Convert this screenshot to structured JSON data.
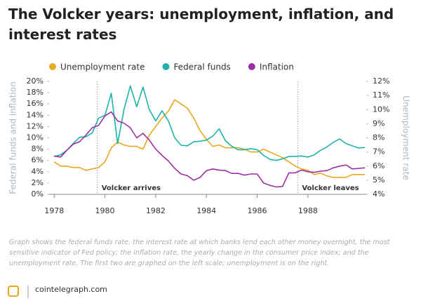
{
  "chart_data": {
    "type": "line",
    "title": "The Volcker years: unemployment, inflation, and interest rates",
    "ylabel": "Federal funds and inflation",
    "y2label": "Unemployment rate",
    "x": [
      1978,
      1978.25,
      1978.5,
      1978.75,
      1979,
      1979.25,
      1979.5,
      1979.75,
      1980,
      1980.25,
      1980.5,
      1980.75,
      1981,
      1981.25,
      1981.5,
      1981.75,
      1982,
      1982.25,
      1982.5,
      1982.75,
      1983,
      1983.25,
      1983.5,
      1983.75,
      1984,
      1984.25,
      1984.5,
      1984.75,
      1985,
      1985.25,
      1985.5,
      1985.75,
      1986,
      1986.25,
      1986.5,
      1986.75,
      1987,
      1987.25,
      1987.5,
      1987.75,
      1988,
      1988.25,
      1988.5,
      1988.75,
      1989,
      1989.25,
      1989.5,
      1989.75,
      1990,
      1990.25
    ],
    "series": [
      {
        "name": "Unemployment rate",
        "color": "#e8a820",
        "axis": "y2",
        "values": [
          6.3,
          6.0,
          6.0,
          5.9,
          5.9,
          5.7,
          5.8,
          5.9,
          6.3,
          7.3,
          7.7,
          7.5,
          7.4,
          7.4,
          7.2,
          8.2,
          8.8,
          9.4,
          9.9,
          10.7,
          10.4,
          10.1,
          9.4,
          8.5,
          7.9,
          7.4,
          7.5,
          7.3,
          7.3,
          7.3,
          7.2,
          7.0,
          7.0,
          7.2,
          7.0,
          6.8,
          6.6,
          6.3,
          6.0,
          5.8,
          5.7,
          5.4,
          5.5,
          5.3,
          5.2,
          5.2,
          5.2,
          5.4,
          5.4,
          5.4
        ]
      },
      {
        "name": "Federal funds",
        "color": "#1fb3a8",
        "values": [
          6.7,
          7.0,
          7.8,
          9.0,
          10.1,
          10.2,
          10.9,
          13.5,
          14.0,
          17.9,
          9.0,
          15.0,
          19.2,
          15.5,
          19.0,
          15.0,
          13.0,
          14.8,
          13.0,
          10.0,
          8.7,
          8.6,
          9.3,
          9.4,
          9.6,
          10.3,
          11.6,
          9.5,
          8.5,
          7.9,
          7.9,
          8.1,
          7.9,
          6.9,
          6.2,
          6.0,
          6.3,
          6.7,
          6.7,
          6.8,
          6.6,
          7.0,
          7.8,
          8.4,
          9.2,
          9.8,
          9.0,
          8.6,
          8.2,
          8.3
        ]
      },
      {
        "name": "Inflation",
        "color": "#9b2fa5",
        "values": [
          6.8,
          6.6,
          7.8,
          8.9,
          9.3,
          10.5,
          11.8,
          12.2,
          13.9,
          14.6,
          13.0,
          12.6,
          11.8,
          10.0,
          10.8,
          9.6,
          8.0,
          6.9,
          5.9,
          4.6,
          3.6,
          3.3,
          2.5,
          3.0,
          4.2,
          4.5,
          4.3,
          4.2,
          3.7,
          3.7,
          3.4,
          3.6,
          3.6,
          2.0,
          1.6,
          1.3,
          1.4,
          3.8,
          3.8,
          4.3,
          4.0,
          3.9,
          4.1,
          4.2,
          4.7,
          5.0,
          5.2,
          4.5,
          4.6,
          4.7
        ]
      }
    ],
    "xlim": [
      1977.8,
      1990.3
    ],
    "xticks": [
      1978,
      1980,
      1982,
      1984,
      1986,
      1988
    ],
    "ylim": [
      0,
      20
    ],
    "yticks": [
      {
        "value": 0,
        "label": "0%"
      },
      {
        "value": 2,
        "label": "2%"
      },
      {
        "value": 4,
        "label": "4%"
      },
      {
        "value": 6,
        "label": "6%"
      },
      {
        "value": 8,
        "label": "8%"
      },
      {
        "value": 10,
        "label": "10%"
      },
      {
        "value": 12,
        "label": "12%"
      },
      {
        "value": 14,
        "label": "14%"
      },
      {
        "value": 16,
        "label": "16%"
      },
      {
        "value": 18,
        "label": "18%"
      },
      {
        "value": 20,
        "label": "20%"
      }
    ],
    "y2lim": [
      4,
      12
    ],
    "y2ticks": [
      {
        "value": 4,
        "label": "4%"
      },
      {
        "value": 5,
        "label": "5%"
      },
      {
        "value": 6,
        "label": "6%"
      },
      {
        "value": 7,
        "label": "7%"
      },
      {
        "value": 8,
        "label": "8%"
      },
      {
        "value": 9,
        "label": "9%"
      },
      {
        "value": 10,
        "label": "10%"
      },
      {
        "value": 11,
        "label": "11%"
      },
      {
        "value": 12,
        "label": "12%"
      }
    ],
    "annotations": [
      {
        "x": 1979.7,
        "label": "Volcker arrives"
      },
      {
        "x": 1987.6,
        "label": "Volcker leaves"
      }
    ],
    "caption": "Graph shows the federal funds rate, the interest rate at which banks lend each other money overnight, the most sensitive indicator of Fed policy; the inflation rate, the yearly change in the consumer price index; and the unemployment rate. The first two are graphed on the left scale; unemployment is on the right.",
    "source": "cointelegraph.com"
  }
}
